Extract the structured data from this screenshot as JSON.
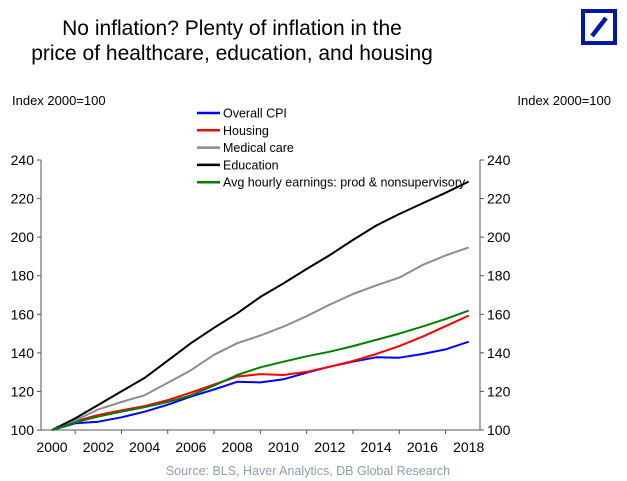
{
  "chart_data": {
    "type": "line",
    "title": [
      "No inflation? Plenty of inflation in the",
      "price of healthcare, education, and housing"
    ],
    "ylabel_left": "Index 2000=100",
    "ylabel_right": "Index 2000=100",
    "ylim": [
      100,
      240
    ],
    "yticks": [
      100,
      120,
      140,
      160,
      180,
      200,
      220,
      240
    ],
    "xlim": [
      2000,
      2018
    ],
    "xticks": [
      2000,
      2002,
      2004,
      2006,
      2008,
      2010,
      2012,
      2014,
      2016,
      2018
    ],
    "grid": false,
    "legend_position": "top-center",
    "source": "Source: BLS, Haver Analytics, DB Global Research",
    "x": [
      2000,
      2001,
      2002,
      2003,
      2004,
      2005,
      2006,
      2007,
      2008,
      2009,
      2010,
      2011,
      2012,
      2013,
      2014,
      2015,
      2016,
      2017,
      2018
    ],
    "series": [
      {
        "name": "Overall CPI",
        "color": "#0000ff",
        "values": [
          100,
          103.5,
          104.3,
          106.6,
          109.5,
          113.1,
          117.3,
          121,
          125,
          124.7,
          126.3,
          129.7,
          132.8,
          135.4,
          137.7,
          137.5,
          139.4,
          141.8,
          145.8
        ]
      },
      {
        "name": "Housing",
        "color": "#ff0000",
        "values": [
          100,
          104.5,
          107.8,
          110.2,
          112.4,
          115.5,
          119.4,
          123.6,
          127.7,
          129,
          128.5,
          130.2,
          132.8,
          135.8,
          139.4,
          143.5,
          148.4,
          153.8,
          159.3
        ]
      },
      {
        "name": "Medical care",
        "color": "#8c8c8c",
        "values": [
          100,
          105,
          110.7,
          114.5,
          118,
          124.5,
          131,
          139,
          145,
          149,
          153.6,
          159,
          165,
          170.5,
          175,
          179,
          185.5,
          190.5,
          194.7
        ]
      },
      {
        "name": "Education",
        "color": "#000000",
        "values": [
          100,
          106,
          113,
          120,
          127,
          136,
          145,
          153,
          160.5,
          169,
          176,
          183.5,
          190.7,
          198.5,
          206,
          212,
          217.5,
          223,
          228.8
        ]
      },
      {
        "name": "Avg hourly earnings: prod & nonsupervisory",
        "color": "#008000",
        "values": [
          100,
          104,
          107,
          109.5,
          111.8,
          114.5,
          118,
          123,
          128.5,
          132.5,
          135.4,
          138.2,
          140.6,
          143.5,
          146.7,
          150,
          153.6,
          157.5,
          161.9
        ]
      }
    ]
  },
  "logo": {
    "name": "deutsche-bank-logo",
    "color": "#0018a8"
  }
}
